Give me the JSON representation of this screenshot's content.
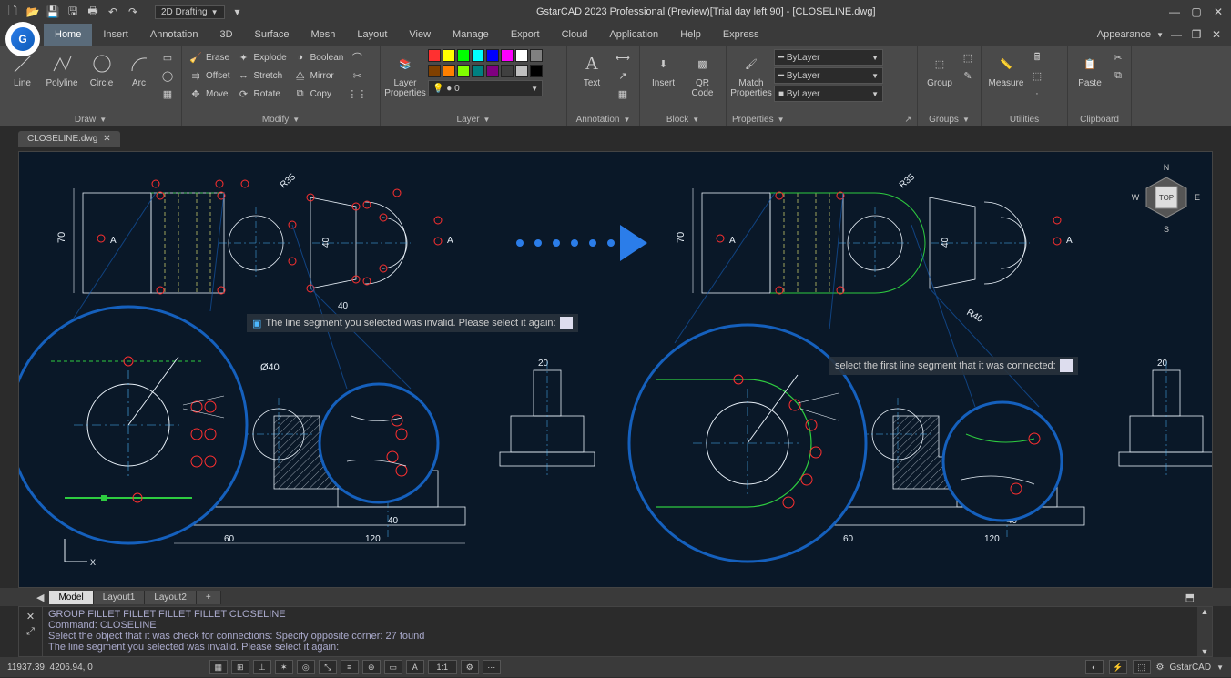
{
  "title": "GstarCAD 2023 Professional (Preview)[Trial day left 90] - [CLOSELINE.dwg]",
  "workspace": "2D Drafting",
  "appearance": "Appearance",
  "tabs": [
    "Home",
    "Insert",
    "Annotation",
    "3D",
    "Surface",
    "Mesh",
    "Layout",
    "View",
    "Manage",
    "Export",
    "Cloud",
    "Application",
    "Help",
    "Express"
  ],
  "active_tab": "Home",
  "file_tab": "CLOSELINE.dwg",
  "ribbon": {
    "draw": {
      "title": "Draw",
      "line": "Line",
      "polyline": "Polyline",
      "circle": "Circle",
      "arc": "Arc"
    },
    "modify": {
      "title": "Modify",
      "erase": "Erase",
      "explode": "Explode",
      "boolean": "Boolean",
      "offset": "Offset",
      "stretch": "Stretch",
      "mirror": "Mirror",
      "move": "Move",
      "rotate": "Rotate",
      "copy": "Copy"
    },
    "layer": {
      "title": "Layer",
      "props": "Layer\nProperties",
      "current": "0"
    },
    "annotation": {
      "title": "Annotation",
      "text": "Text"
    },
    "block": {
      "title": "Block",
      "insert": "Insert",
      "qr": "QR\nCode"
    },
    "properties": {
      "title": "Properties",
      "match": "Match\nProperties",
      "bylayer": "ByLayer"
    },
    "groups": {
      "title": "Groups",
      "group": "Group"
    },
    "utilities": {
      "title": "Utilities",
      "measure": "Measure"
    },
    "clipboard": {
      "title": "Clipboard",
      "paste": "Paste"
    }
  },
  "layout_tabs": [
    "Model",
    "Layout1",
    "Layout2",
    "+"
  ],
  "active_layout": "Model",
  "cmd_history": "GROUP FILLET FILLET  FILLET  FILLET CLOSELINE",
  "cmd_line1": "Command: CLOSELINE",
  "cmd_line2": "Select the object that it was check for connections: Specify opposite corner:  27 found",
  "cmd_line3": "The line segment you selected was invalid. Please select it again:",
  "prompt1": "The line segment you selected was invalid. Please select it again:",
  "prompt2": "select the first line segment that it was connected:",
  "coords": "11937.39, 4206.94, 0",
  "product": "GstarCAD",
  "colors": {
    "bg": "#0a1828",
    "outline": "#e8f0f8",
    "red": "#ff3030",
    "cyan": "#4db8ff",
    "green": "#2ecc40",
    "yellow": "#ffff80",
    "blue_zoom": "#1560bd",
    "arrow": "#2b7de9"
  },
  "viewcube": {
    "n": "N",
    "s": "S",
    "e": "E",
    "w": "W",
    "top": "TOP"
  },
  "layer_swatches": [
    "#ff3030",
    "#ffff00",
    "#00ff00",
    "#00ffff",
    "#0000ff",
    "#ff00ff",
    "#ffffff",
    "#808080",
    "#404040"
  ],
  "dims": {
    "d70": "70",
    "d40": "40",
    "d60": "60",
    "d120": "120",
    "d20": "20",
    "r35": "R35",
    "r40": "R40",
    "a": "A",
    "phi40": "Ø40"
  }
}
